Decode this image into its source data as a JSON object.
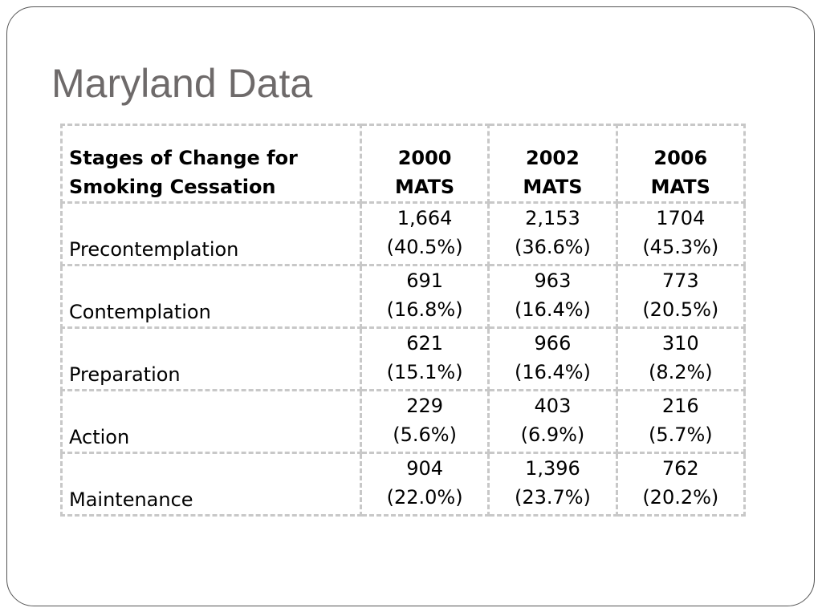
{
  "slide": {
    "title": "Maryland Data"
  },
  "table": {
    "headers": [
      [
        "Stages of Change for",
        "Smoking Cessation"
      ],
      [
        "2000",
        "MATS"
      ],
      [
        "2002",
        "MATS"
      ],
      [
        "2006",
        "MATS"
      ]
    ],
    "rows": [
      {
        "stage": "Precontemplation",
        "values": [
          {
            "count": "1,664",
            "pct": "(40.5%)"
          },
          {
            "count": "2,153",
            "pct": "(36.6%)"
          },
          {
            "count": "1704",
            "pct": "(45.3%)"
          }
        ]
      },
      {
        "stage": "Contemplation",
        "values": [
          {
            "count": "691",
            "pct": "(16.8%)"
          },
          {
            "count": "963",
            "pct": "(16.4%)"
          },
          {
            "count": "773",
            "pct": "(20.5%)"
          }
        ]
      },
      {
        "stage": "Preparation",
        "values": [
          {
            "count": "621",
            "pct": "(15.1%)"
          },
          {
            "count": "966",
            "pct": "(16.4%)"
          },
          {
            "count": "310",
            "pct": "(8.2%)"
          }
        ]
      },
      {
        "stage": "Action",
        "values": [
          {
            "count": "229",
            "pct": "(5.6%)"
          },
          {
            "count": "403",
            "pct": "(6.9%)"
          },
          {
            "count": "216",
            "pct": "(5.7%)"
          }
        ]
      },
      {
        "stage": "Maintenance",
        "values": [
          {
            "count": "904",
            "pct": "(22.0%)"
          },
          {
            "count": "1,396",
            "pct": "(23.7%)"
          },
          {
            "count": "762",
            "pct": "(20.2%)"
          }
        ]
      }
    ]
  }
}
